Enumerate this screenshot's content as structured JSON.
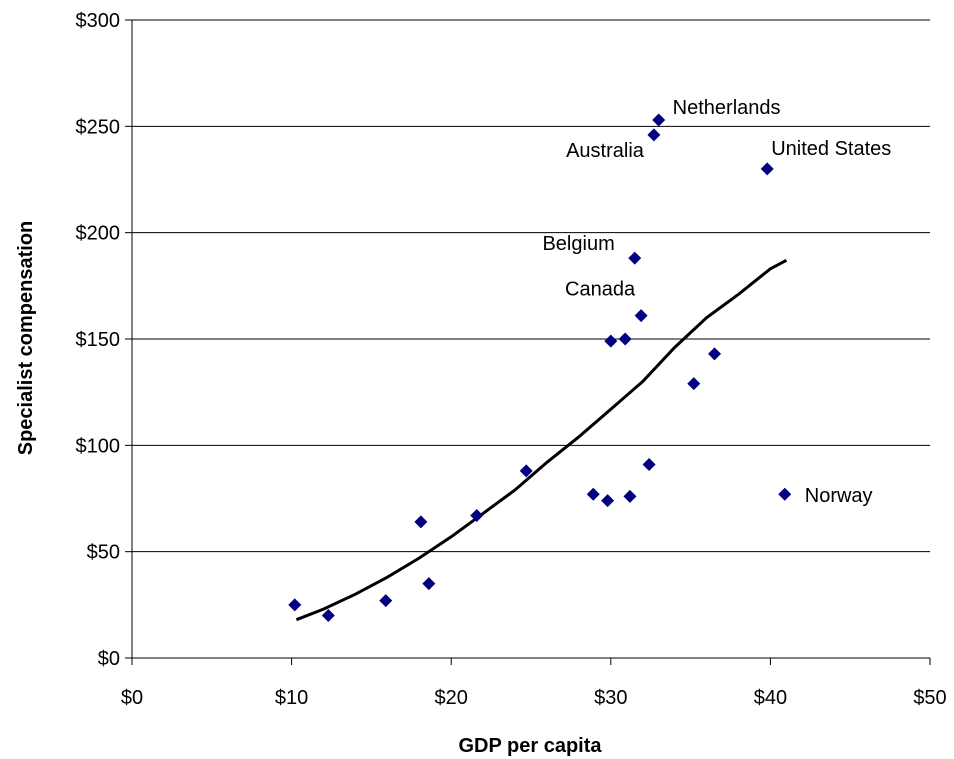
{
  "chart_data": {
    "type": "scatter",
    "title": "",
    "xlabel": "GDP per capita",
    "ylabel": "Specialist compensation",
    "xlim": [
      0,
      50
    ],
    "ylim": [
      0,
      300
    ],
    "x_ticks": [
      0,
      10,
      20,
      30,
      40,
      50
    ],
    "y_ticks": [
      0,
      50,
      100,
      150,
      200,
      250,
      300
    ],
    "x_tick_labels": [
      "$0",
      "$10",
      "$20",
      "$30",
      "$40",
      "$50"
    ],
    "y_tick_labels": [
      "$0",
      "$50",
      "$100",
      "$150",
      "$200",
      "$250",
      "$300"
    ],
    "grid": "horizontal",
    "legend": "none",
    "colors": {
      "points": "#000080",
      "trendline": "#000000",
      "grid": "#000000"
    },
    "points": [
      {
        "x": 10.2,
        "y": 25,
        "label": ""
      },
      {
        "x": 12.3,
        "y": 20,
        "label": ""
      },
      {
        "x": 15.9,
        "y": 27,
        "label": ""
      },
      {
        "x": 18.1,
        "y": 64,
        "label": ""
      },
      {
        "x": 18.6,
        "y": 35,
        "label": ""
      },
      {
        "x": 21.6,
        "y": 67,
        "label": ""
      },
      {
        "x": 24.7,
        "y": 88,
        "label": ""
      },
      {
        "x": 28.9,
        "y": 77,
        "label": ""
      },
      {
        "x": 29.8,
        "y": 74,
        "label": ""
      },
      {
        "x": 30.0,
        "y": 149,
        "label": ""
      },
      {
        "x": 30.9,
        "y": 150,
        "label": ""
      },
      {
        "x": 31.2,
        "y": 76,
        "label": ""
      },
      {
        "x": 31.5,
        "y": 188,
        "label": "Belgium"
      },
      {
        "x": 31.9,
        "y": 161,
        "label": "Canada"
      },
      {
        "x": 32.4,
        "y": 91,
        "label": ""
      },
      {
        "x": 32.7,
        "y": 246,
        "label": "Australia"
      },
      {
        "x": 33.0,
        "y": 253,
        "label": "Netherlands"
      },
      {
        "x": 35.2,
        "y": 129,
        "label": ""
      },
      {
        "x": 36.5,
        "y": 143,
        "label": ""
      },
      {
        "x": 39.8,
        "y": 230,
        "label": "United States"
      },
      {
        "x": 40.9,
        "y": 77,
        "label": "Norway"
      }
    ],
    "trendline": {
      "type": "polynomial",
      "x": [
        10.3,
        12,
        14,
        16,
        18,
        20,
        22,
        24,
        26,
        28,
        30,
        32,
        34,
        36,
        38,
        40,
        41.0
      ],
      "y": [
        18,
        23,
        30,
        38,
        47,
        57,
        68,
        79,
        92,
        104,
        117,
        130,
        146,
        160,
        171,
        183,
        187
      ]
    }
  }
}
